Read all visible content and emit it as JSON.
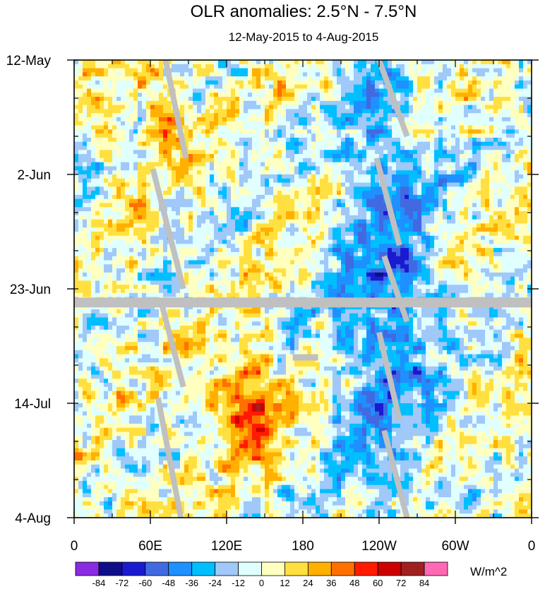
{
  "chart_data": {
    "type": "heatmap",
    "title": "OLR anomalies: 2.5°N - 7.5°N",
    "subtitle": "12-May-2015 to 4-Aug-2015",
    "x_ticks": [
      {
        "lon": 0,
        "label": "0"
      },
      {
        "lon": 60,
        "label": "60E"
      },
      {
        "lon": 120,
        "label": "120E"
      },
      {
        "lon": 180,
        "label": "180"
      },
      {
        "lon": 240,
        "label": "120W"
      },
      {
        "lon": 300,
        "label": "60W"
      },
      {
        "lon": 360,
        "label": "0"
      }
    ],
    "y_ticks": [
      {
        "day": 0,
        "label": "12-May"
      },
      {
        "day": 21,
        "label": "2-Jun"
      },
      {
        "day": 42,
        "label": "23-Jun"
      },
      {
        "day": 63,
        "label": "14-Jul"
      },
      {
        "day": 84,
        "label": "4-Aug"
      }
    ],
    "xlim": [
      0,
      360
    ],
    "ylim_days": [
      0,
      84
    ],
    "units": "W/m^2",
    "colorbar": {
      "labels": [
        "-84",
        "-72",
        "-60",
        "-48",
        "-36",
        "-24",
        "-12",
        "0",
        "12",
        "24",
        "36",
        "48",
        "60",
        "72",
        "84"
      ],
      "levels": [
        -84,
        -72,
        -60,
        -48,
        -36,
        -24,
        -12,
        0,
        12,
        24,
        36,
        48,
        60,
        72,
        84
      ],
      "colors": [
        "#8a2be2",
        "#0e0e8a",
        "#1a1ad0",
        "#4169e1",
        "#1e90ff",
        "#00bfff",
        "#a0c8f8",
        "#e0ffff",
        "#ffffc0",
        "#ffe040",
        "#ffb000",
        "#ff7000",
        "#ff1a00",
        "#cc0000",
        "#a02020",
        "#ff69b4"
      ]
    },
    "missing_data": {
      "color": "#c0c0c0",
      "full_row_day": 44.5
    },
    "features": [
      {
        "name": "negative band",
        "lon_start": 205,
        "lon_end": 285,
        "day_start": 0,
        "day_end": 84,
        "value": -45
      },
      {
        "name": "positive band",
        "lon_start": 50,
        "lon_end": 90,
        "day_start": 0,
        "day_end": 20,
        "value": 35
      },
      {
        "name": "positive blob",
        "lon_start": 110,
        "lon_end": 160,
        "day_start": 55,
        "day_end": 72,
        "value": 55
      }
    ]
  }
}
